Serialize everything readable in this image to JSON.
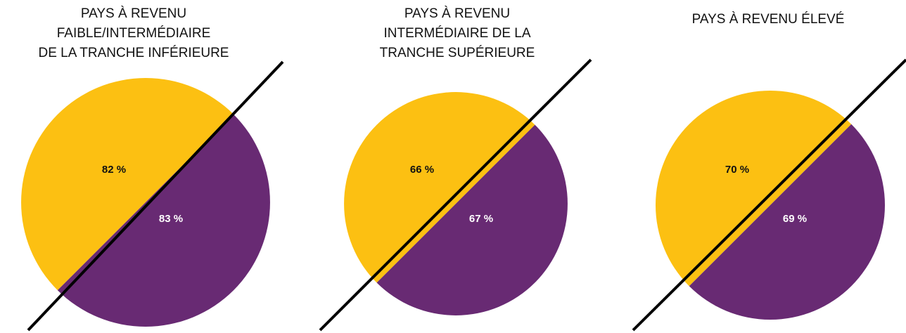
{
  "panels": [
    {
      "title": [
        "PAYS À REVENU",
        "FAIBLE/INTERMÉDIAIRE",
        "DE LA TRANCHE INFÉRIEURE"
      ],
      "upper_label": "82 %",
      "lower_label": "83 %"
    },
    {
      "title": [
        "PAYS À REVENU",
        "INTERMÉDIAIRE DE LA",
        "TRANCHE SUPÉRIEURE"
      ],
      "upper_label": "66 %",
      "lower_label": "67 %"
    },
    {
      "title": [
        "PAYS À REVENU ÉLEVÉ"
      ],
      "upper_label": "70 %",
      "lower_label": "69 %"
    }
  ]
}
